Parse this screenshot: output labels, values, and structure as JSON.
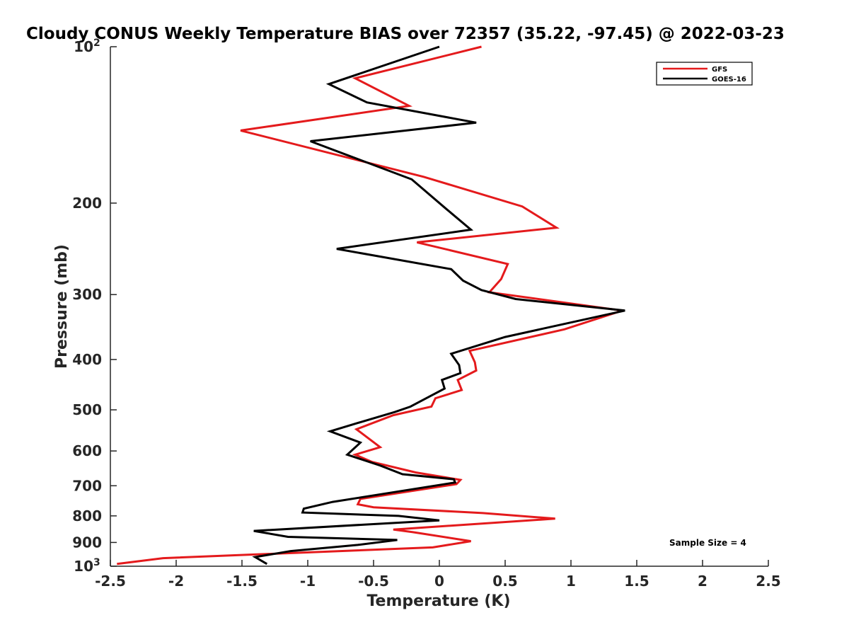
{
  "chart_data": {
    "type": "line",
    "title": "Cloudy CONUS Weekly Temperature BIAS over 72357 (35.22, -97.45) @ 2022-03-23",
    "xlabel": "Temperature (K)",
    "ylabel": "Pressure (mb)",
    "xlim": [
      -2.5,
      2.5
    ],
    "ylim": [
      100,
      1000
    ],
    "yscale": "log",
    "y_reversed": true,
    "grid": false,
    "legend_position": "top-right",
    "x_ticks": [
      "-2.5",
      "-2",
      "-1.5",
      "-1",
      "-0.5",
      "0",
      "0.5",
      "1",
      "1.5",
      "2",
      "2.5"
    ],
    "y_ticks": [
      {
        "value": 100,
        "label": "10",
        "sup": "2"
      },
      {
        "value": 200,
        "label": "200"
      },
      {
        "value": 300,
        "label": "300"
      },
      {
        "value": 400,
        "label": "400"
      },
      {
        "value": 500,
        "label": "500"
      },
      {
        "value": 600,
        "label": "600"
      },
      {
        "value": 700,
        "label": "700"
      },
      {
        "value": 800,
        "label": "800"
      },
      {
        "value": 900,
        "label": "900"
      },
      {
        "value": 1000,
        "label": "10",
        "sup": "3"
      }
    ],
    "series": [
      {
        "name": "GFS",
        "color": "#e41a1c",
        "points": [
          [
            0.32,
            100
          ],
          [
            -0.64,
            115
          ],
          [
            -0.23,
            130
          ],
          [
            -1.51,
            145
          ],
          [
            -0.12,
            178
          ],
          [
            0.63,
            203
          ],
          [
            0.89,
            223
          ],
          [
            -0.17,
            238
          ],
          [
            0.52,
            262
          ],
          [
            0.47,
            280
          ],
          [
            0.38,
            297
          ],
          [
            1.39,
            322
          ],
          [
            0.95,
            350
          ],
          [
            0.23,
            385
          ],
          [
            0.27,
            405
          ],
          [
            0.28,
            420
          ],
          [
            0.14,
            438
          ],
          [
            0.17,
            458
          ],
          [
            -0.03,
            475
          ],
          [
            -0.06,
            493
          ],
          [
            -0.35,
            512
          ],
          [
            -0.63,
            545
          ],
          [
            -0.45,
            590
          ],
          [
            -0.64,
            610
          ],
          [
            -0.51,
            630
          ],
          [
            -0.18,
            660
          ],
          [
            0.16,
            682
          ],
          [
            0.13,
            695
          ],
          [
            -0.6,
            742
          ],
          [
            -0.62,
            760
          ],
          [
            -0.5,
            770
          ],
          [
            0.33,
            790
          ],
          [
            0.88,
            810
          ],
          [
            -0.35,
            850
          ],
          [
            -0.2,
            860
          ],
          [
            0.24,
            895
          ],
          [
            -0.05,
            920
          ],
          [
            -2.1,
            965
          ],
          [
            -2.45,
            990
          ]
        ]
      },
      {
        "name": "GOES-16",
        "color": "#000000",
        "points": [
          [
            0.0,
            100
          ],
          [
            -0.84,
            118
          ],
          [
            -0.55,
            128
          ],
          [
            0.28,
            140
          ],
          [
            -0.98,
            152
          ],
          [
            -0.21,
            180
          ],
          [
            0.05,
            205
          ],
          [
            0.24,
            225
          ],
          [
            -0.78,
            245
          ],
          [
            0.09,
            268
          ],
          [
            0.18,
            282
          ],
          [
            0.32,
            294
          ],
          [
            0.58,
            306
          ],
          [
            1.41,
            322
          ],
          [
            0.5,
            362
          ],
          [
            0.09,
            390
          ],
          [
            0.15,
            410
          ],
          [
            0.16,
            425
          ],
          [
            0.02,
            438
          ],
          [
            0.04,
            455
          ],
          [
            -0.1,
            475
          ],
          [
            -0.22,
            493
          ],
          [
            -0.34,
            505
          ],
          [
            -0.62,
            530
          ],
          [
            -0.83,
            550
          ],
          [
            -0.6,
            578
          ],
          [
            -0.7,
            610
          ],
          [
            -0.45,
            640
          ],
          [
            -0.28,
            665
          ],
          [
            0.11,
            680
          ],
          [
            0.12,
            690
          ],
          [
            -0.81,
            752
          ],
          [
            -1.03,
            775
          ],
          [
            -1.04,
            788
          ],
          [
            -0.31,
            800
          ],
          [
            0.0,
            816
          ],
          [
            -1.41,
            855
          ],
          [
            -1.15,
            878
          ],
          [
            -0.32,
            890
          ],
          [
            -0.62,
            910
          ],
          [
            -1.13,
            935
          ],
          [
            -1.4,
            960
          ],
          [
            -1.31,
            990
          ]
        ]
      }
    ],
    "annotations": [
      "Sample Size = 4"
    ]
  }
}
